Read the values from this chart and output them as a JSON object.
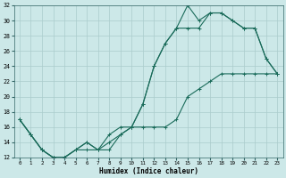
{
  "xlabel": "Humidex (Indice chaleur)",
  "bg_color": "#cce8e8",
  "line_color": "#1a6b5a",
  "grid_color": "#aacccc",
  "xlim": [
    -0.5,
    23.5
  ],
  "ylim": [
    12,
    32
  ],
  "yticks": [
    12,
    14,
    16,
    18,
    20,
    22,
    24,
    26,
    28,
    30,
    32
  ],
  "xticks": [
    0,
    1,
    2,
    3,
    4,
    5,
    6,
    7,
    8,
    9,
    10,
    11,
    12,
    13,
    14,
    15,
    16,
    17,
    18,
    19,
    20,
    21,
    22,
    23
  ],
  "line1_x": [
    0,
    1,
    2,
    3,
    4,
    5,
    6,
    7,
    8,
    9,
    10,
    11,
    12,
    13,
    14,
    15,
    16,
    17,
    18,
    19,
    20,
    21,
    22,
    23
  ],
  "line1_y": [
    17,
    15,
    13,
    12,
    12,
    13,
    13,
    13,
    13,
    15,
    16,
    16,
    16,
    16,
    17,
    20,
    21,
    22,
    23,
    23,
    23,
    23,
    23,
    23
  ],
  "line2_x": [
    0,
    1,
    2,
    3,
    4,
    5,
    6,
    7,
    8,
    9,
    10,
    11,
    12,
    13,
    14,
    15,
    16,
    17,
    18,
    19,
    20,
    21,
    22,
    23
  ],
  "line2_y": [
    17,
    15,
    13,
    12,
    12,
    13,
    14,
    13,
    14,
    15,
    16,
    19,
    24,
    27,
    29,
    29,
    29,
    31,
    31,
    30,
    29,
    29,
    25,
    23
  ],
  "line3_x": [
    0,
    1,
    2,
    3,
    4,
    5,
    6,
    7,
    8,
    9,
    10,
    11,
    12,
    13,
    14,
    15,
    16,
    17,
    18,
    19,
    20,
    21,
    22,
    23
  ],
  "line3_y": [
    17,
    15,
    13,
    12,
    12,
    13,
    14,
    13,
    15,
    16,
    16,
    19,
    24,
    27,
    29,
    32,
    30,
    31,
    31,
    30,
    29,
    29,
    25,
    23
  ]
}
